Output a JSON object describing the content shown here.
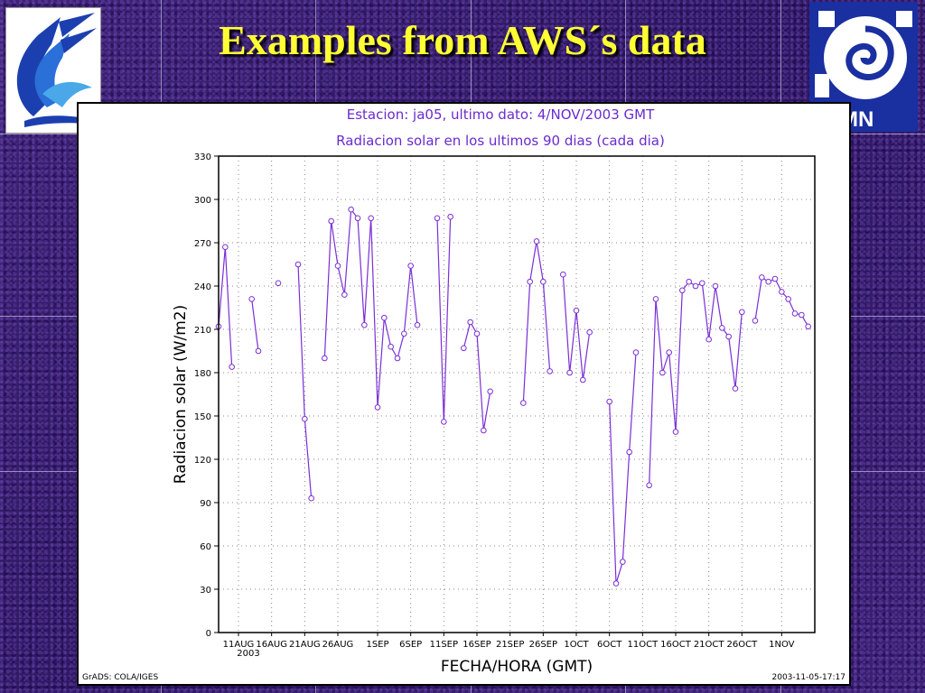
{
  "slide": {
    "title": "Examples from AWS´s data"
  },
  "chart_data": {
    "type": "line",
    "header_line1": "Estacion: ja05, ultimo dato: 4/NOV/2003 GMT",
    "title": "Radiacion solar en los ultimos 90 dias (cada dia)",
    "xlabel": "FECHA/HORA (GMT)",
    "ylabel": "Radiacion solar (W/m2)",
    "ylim": [
      0,
      330
    ],
    "yticks": [
      0,
      30,
      60,
      90,
      120,
      150,
      180,
      210,
      240,
      270,
      300,
      330
    ],
    "xlim": [
      0,
      90
    ],
    "x_tick_labels": [
      {
        "day": 3,
        "label": "11AUG"
      },
      {
        "day": 8,
        "label": "16AUG"
      },
      {
        "day": 13,
        "label": "21AUG"
      },
      {
        "day": 18,
        "label": "26AUG"
      },
      {
        "day": 24,
        "label": "1SEP"
      },
      {
        "day": 29,
        "label": "6SEP"
      },
      {
        "day": 34,
        "label": "11SEP"
      },
      {
        "day": 39,
        "label": "16SEP"
      },
      {
        "day": 44,
        "label": "21SEP"
      },
      {
        "day": 49,
        "label": "26SEP"
      },
      {
        "day": 54,
        "label": "1OCT"
      },
      {
        "day": 59,
        "label": "6OCT"
      },
      {
        "day": 64,
        "label": "11OCT"
      },
      {
        "day": 69,
        "label": "16OCT"
      },
      {
        "day": 74,
        "label": "21OCT"
      },
      {
        "day": 79,
        "label": "26OCT"
      },
      {
        "day": 85,
        "label": "1NOV"
      }
    ],
    "year_label": "2003",
    "grid": true,
    "series": [
      {
        "name": "Radiacion solar",
        "color": "#7a2fd6",
        "segments": [
          [
            [
              0,
              212
            ],
            [
              1,
              267
            ],
            [
              2,
              184
            ]
          ],
          [
            [
              5,
              231
            ],
            [
              6,
              195
            ]
          ],
          [
            [
              9,
              242
            ]
          ],
          [
            [
              12,
              255
            ],
            [
              13,
              148
            ],
            [
              14,
              93
            ]
          ],
          [
            [
              16,
              190
            ],
            [
              17,
              285
            ],
            [
              18,
              254
            ],
            [
              19,
              234
            ],
            [
              20,
              293
            ],
            [
              21,
              287
            ],
            [
              22,
              213
            ],
            [
              23,
              287
            ],
            [
              24,
              156
            ],
            [
              25,
              218
            ],
            [
              26,
              198
            ],
            [
              27,
              190
            ],
            [
              28,
              207
            ],
            [
              29,
              254
            ],
            [
              30,
              213
            ]
          ],
          [
            [
              33,
              287
            ],
            [
              34,
              146
            ],
            [
              35,
              288
            ]
          ],
          [
            [
              37,
              197
            ],
            [
              38,
              215
            ],
            [
              39,
              207
            ],
            [
              40,
              140
            ],
            [
              41,
              167
            ]
          ],
          [
            [
              46,
              159
            ],
            [
              47,
              243
            ],
            [
              48,
              271
            ],
            [
              49,
              243
            ],
            [
              50,
              181
            ]
          ],
          [
            [
              52,
              248
            ],
            [
              53,
              180
            ],
            [
              54,
              223
            ],
            [
              55,
              175
            ],
            [
              56,
              208
            ]
          ],
          [
            [
              59,
              160
            ],
            [
              60,
              34
            ],
            [
              61,
              49
            ],
            [
              62,
              125
            ],
            [
              63,
              194
            ]
          ],
          [
            [
              65,
              102
            ],
            [
              66,
              231
            ],
            [
              67,
              180
            ],
            [
              68,
              194
            ],
            [
              69,
              139
            ],
            [
              70,
              237
            ],
            [
              71,
              243
            ],
            [
              72,
              240
            ],
            [
              73,
              242
            ],
            [
              74,
              203
            ],
            [
              75,
              240
            ],
            [
              76,
              211
            ],
            [
              77,
              205
            ],
            [
              78,
              169
            ],
            [
              79,
              222
            ]
          ],
          [
            [
              81,
              216
            ],
            [
              82,
              246
            ],
            [
              83,
              243
            ],
            [
              84,
              245
            ],
            [
              85,
              236
            ],
            [
              86,
              231
            ],
            [
              87,
              221
            ],
            [
              88,
              220
            ],
            [
              89,
              212
            ]
          ]
        ]
      }
    ],
    "footer_left": "GrADS: COLA/IGES",
    "footer_right": "2003-11-05-17:17"
  }
}
